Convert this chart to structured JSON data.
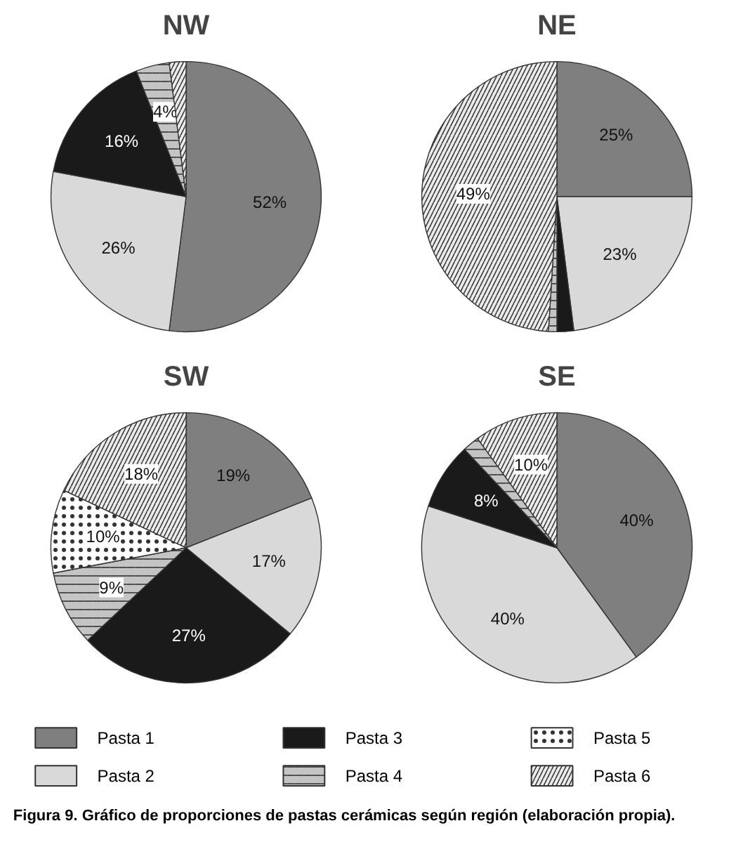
{
  "chart_data": [
    {
      "type": "pie",
      "title": "NW",
      "categories": [
        "Pasta 1",
        "Pasta 2",
        "Pasta 3",
        "Pasta 4",
        "Pasta 5",
        "Pasta 6"
      ],
      "values": [
        52,
        26,
        16,
        4,
        null,
        2
      ],
      "value_labels": [
        "52%",
        "26%",
        "16%",
        "4%",
        null,
        null
      ],
      "colors": [
        "#7f7f7f",
        "#d9d9d9",
        "#1a1a1a",
        "#c4c4c4",
        "#ffffff",
        "#ebebeb"
      ],
      "legend": "bottom"
    },
    {
      "type": "pie",
      "title": "NE",
      "categories": [
        null,
        null,
        null,
        null,
        null,
        null
      ],
      "values": [
        25,
        23,
        2,
        1,
        null,
        49
      ],
      "value_labels": [
        "25%",
        "23%",
        null,
        null,
        null,
        "49%"
      ],
      "colors": [
        "#7f7f7f",
        "#d9d9d9",
        "#1a1a1a",
        "#c4c4c4",
        "#ffffff",
        "#ebebeb"
      ]
    },
    {
      "type": "pie",
      "title": "SW",
      "categories": [
        null,
        null,
        null,
        null,
        null,
        null
      ],
      "values": [
        19,
        17,
        27,
        9,
        10,
        18
      ],
      "value_labels": [
        "19%",
        "17%",
        "27%",
        "9%",
        "10%",
        "18%"
      ],
      "colors": [
        "#7f7f7f",
        "#d9d9d9",
        "#1a1a1a",
        "#c4c4c4",
        "#ffffff",
        "#ebebeb"
      ]
    },
    {
      "type": "pie",
      "title": "SE",
      "categories": [
        null,
        null,
        null,
        null,
        null,
        null
      ],
      "values": [
        40,
        40,
        8,
        2,
        null,
        10
      ],
      "value_labels": [
        "40%",
        "40%",
        "8%",
        null,
        null,
        "10%"
      ],
      "colors": [
        "#7f7f7f",
        "#d9d9d9",
        "#1a1a1a",
        "#c4c4c4",
        "#ffffff",
        "#ebebeb"
      ],
      "annotations": [
        "Figura 9. Gráfico de proporciones de pastas cerámicas según región (elaboración propia)."
      ]
    }
  ]
}
